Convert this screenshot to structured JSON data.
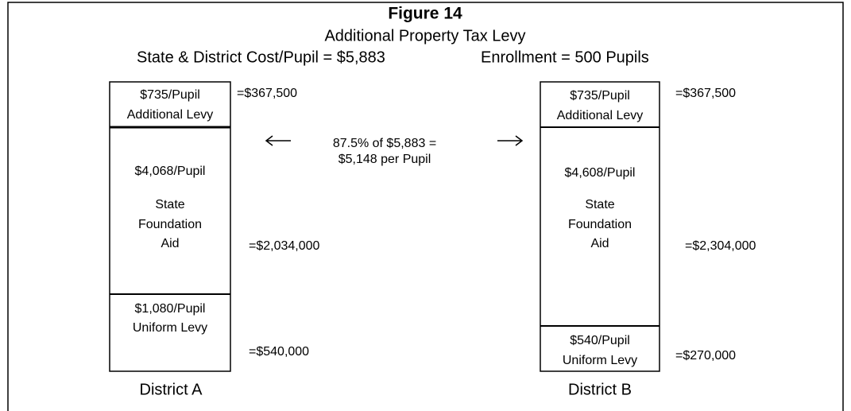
{
  "header": {
    "title": "Figure 14",
    "subtitle": "Additional Property Tax Levy",
    "cost": "State & District Cost/Pupil = $5,883",
    "enrollment": "Enrollment = 500 Pupils"
  },
  "note": {
    "lines": [
      "87.5% of $5,883 =",
      "$5,148 per Pupil"
    ]
  },
  "districts": [
    {
      "label": "District A",
      "segments": [
        {
          "lines": [
            "$735/Pupil",
            "Additional Levy"
          ],
          "amount": "=$367,500"
        },
        {
          "lines": [
            "$4,068/Pupil",
            "State",
            "Foundation",
            "Aid"
          ],
          "amount": "=$2,034,000"
        },
        {
          "lines": [
            "$1,080/Pupil",
            "Uniform Levy"
          ],
          "amount": "=$540,000"
        }
      ]
    },
    {
      "label": "District B",
      "segments": [
        {
          "lines": [
            "$735/Pupil",
            "Additional Levy"
          ],
          "amount": "=$367,500"
        },
        {
          "lines": [
            "$4,608/Pupil",
            "State",
            "Foundation",
            "Aid"
          ],
          "amount": "=$2,304,000"
        },
        {
          "lines": [
            "$540/Pupil",
            "Uniform Levy"
          ],
          "amount": "=$270,000"
        }
      ]
    }
  ]
}
